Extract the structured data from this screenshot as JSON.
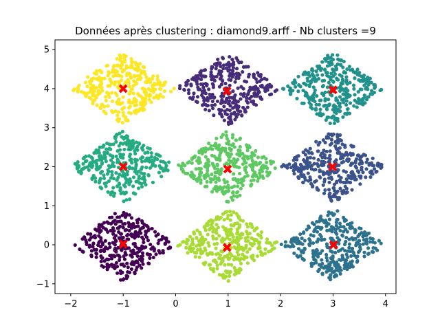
{
  "chart_data": {
    "type": "scatter",
    "title": "Données après clustering : diamond9.arff - Nb clusters =9",
    "xlabel": "",
    "ylabel": "",
    "xlim": [
      -2.3,
      4.2
    ],
    "ylim": [
      -1.25,
      5.25
    ],
    "x_ticks": [
      -2,
      -1,
      0,
      1,
      2,
      3,
      4
    ],
    "y_ticks": [
      -1,
      0,
      1,
      2,
      3,
      4,
      5
    ],
    "x_tick_labels": [
      "−2",
      "−1",
      "0",
      "1",
      "2",
      "3",
      "4"
    ],
    "y_tick_labels": [
      "−1",
      "0",
      "1",
      "2",
      "3",
      "4",
      "5"
    ],
    "grid": false,
    "legend": "none",
    "points_per_cluster": 330,
    "cluster_shape": "diamond, half-width 1.0 in x and 0.95 in y",
    "clusters": [
      {
        "center": [
          -1,
          0
        ],
        "color": "#440154"
      },
      {
        "center": [
          1,
          0
        ],
        "color": "#a8db34"
      },
      {
        "center": [
          3,
          0
        ],
        "color": "#2c728e"
      },
      {
        "center": [
          -1,
          2
        ],
        "color": "#25ab82"
      },
      {
        "center": [
          1,
          2
        ],
        "color": "#5ec962"
      },
      {
        "center": [
          3,
          2
        ],
        "color": "#3b528b"
      },
      {
        "center": [
          -1,
          4
        ],
        "color": "#fde725"
      },
      {
        "center": [
          1,
          4
        ],
        "color": "#472c7a"
      },
      {
        "center": [
          3,
          4
        ],
        "color": "#21918c"
      }
    ],
    "centroids": {
      "color": "#ff0000",
      "marker": "X",
      "points": [
        [
          -1.0,
          0.02
        ],
        [
          0.98,
          -0.07
        ],
        [
          3.01,
          0.0
        ],
        [
          -1.0,
          2.0
        ],
        [
          0.99,
          1.94
        ],
        [
          2.99,
          2.0
        ],
        [
          -1.0,
          4.0
        ],
        [
          0.98,
          3.94
        ],
        [
          3.0,
          3.97
        ]
      ]
    }
  }
}
